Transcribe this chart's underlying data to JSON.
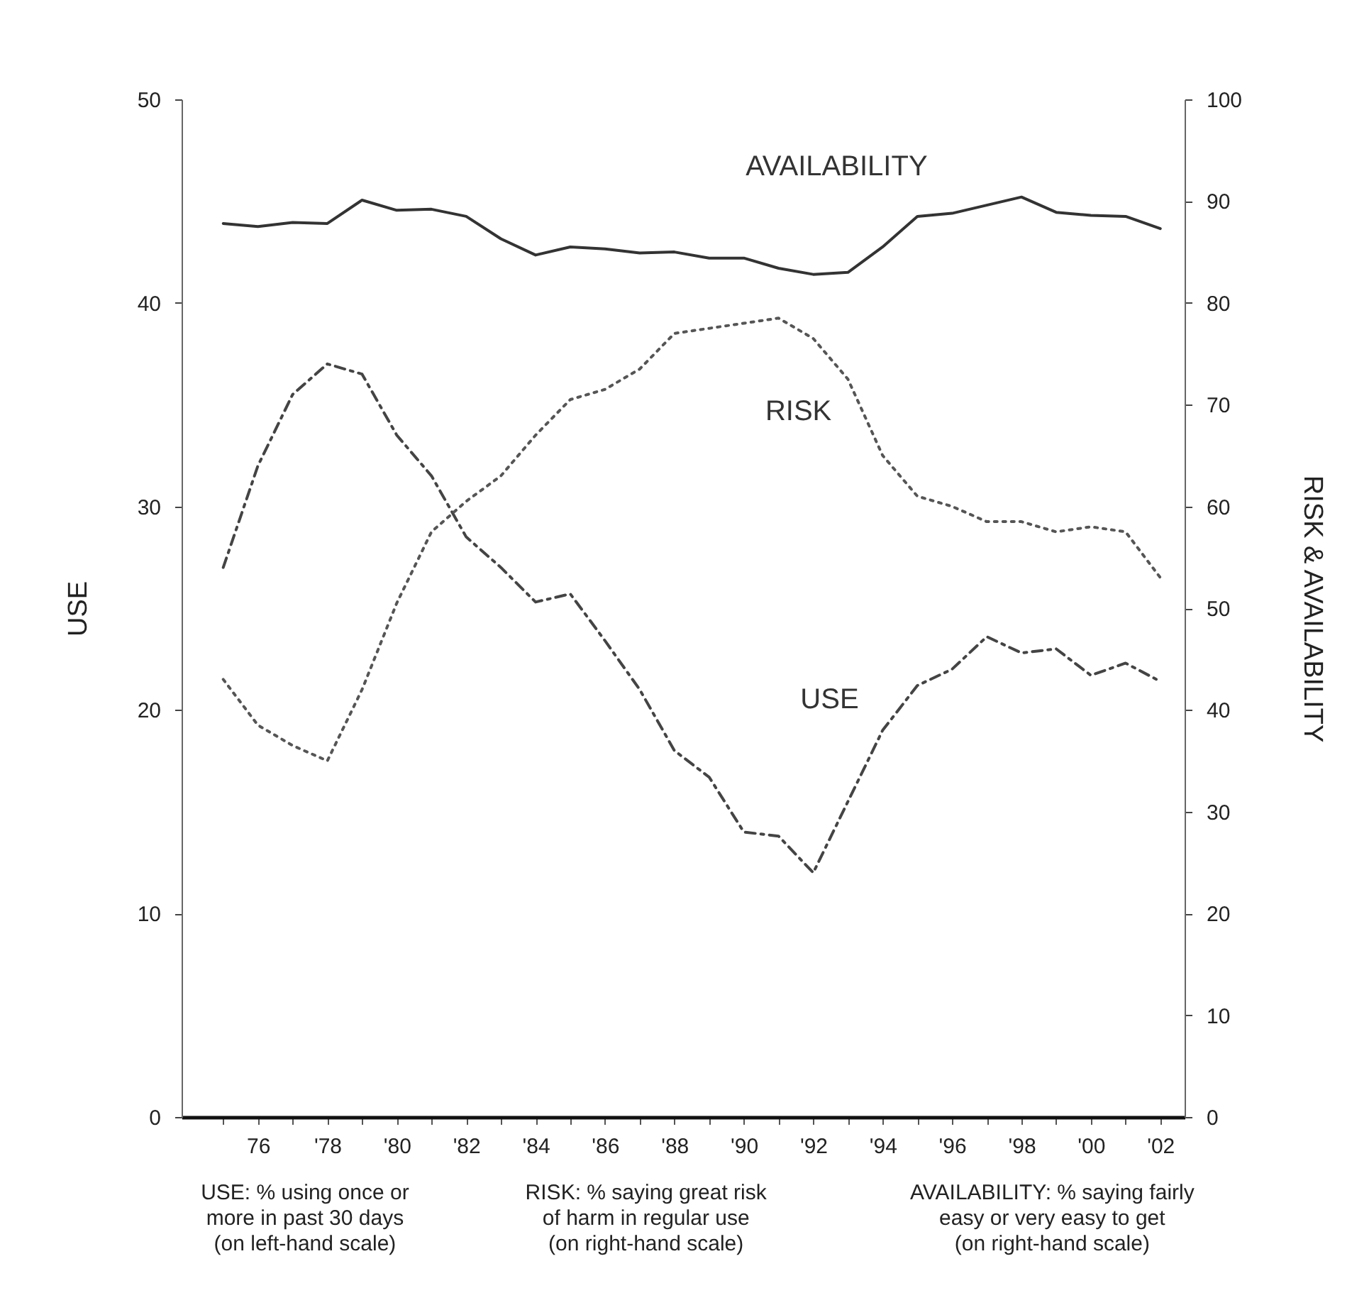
{
  "chart_data": {
    "type": "line",
    "ylabel": "USE",
    "y2label": "RISK & AVAILABILITY",
    "x": [
      1975,
      1976,
      1977,
      1978,
      1979,
      1980,
      1981,
      1982,
      1983,
      1984,
      1985,
      1986,
      1987,
      1988,
      1989,
      1990,
      1991,
      1992,
      1993,
      1994,
      1995,
      1996,
      1997,
      1998,
      1999,
      2000,
      2001,
      2002
    ],
    "series": [
      {
        "name": "USE",
        "color": "#444444",
        "line_style": "dashed",
        "values": [
          27,
          32,
          35.5,
          37,
          36.5,
          33.5,
          31.5,
          28.5,
          27,
          25.3,
          25.7,
          23.4,
          21,
          18,
          16.7,
          14,
          13.8,
          12,
          15.5,
          19,
          21.2,
          22,
          23.6,
          22.8,
          23,
          21.7,
          22.3,
          21.4
        ]
      },
      {
        "name": "RISK",
        "color": "#555555",
        "line_style": "dotted",
        "axis": "y2",
        "values": [
          43,
          38.5,
          36.5,
          35,
          42,
          50.5,
          57.5,
          60.5,
          63,
          67,
          70.5,
          71.5,
          73.5,
          77,
          77.5,
          78,
          78.5,
          76.5,
          72.5,
          65,
          61,
          60,
          58.5,
          58.5,
          57.5,
          58,
          57.5,
          53
        ]
      },
      {
        "name": "AVAILABILITY",
        "color": "#333333",
        "line_style": "solid",
        "axis": "y2",
        "values": [
          87.8,
          87.5,
          87.9,
          87.8,
          90.1,
          89.1,
          89.2,
          88.5,
          86.3,
          84.7,
          85.5,
          85.3,
          84.9,
          85,
          84.4,
          84.4,
          83.4,
          82.8,
          83,
          85.5,
          88.5,
          88.8,
          89.6,
          90.4,
          88.9,
          88.6,
          88.5,
          87.3
        ]
      }
    ],
    "xlim": [
      1973.8,
      2002.7
    ],
    "xticks": [
      {
        "value": 1975,
        "label": null
      },
      {
        "value": 1976,
        "label": "76"
      },
      {
        "value": 1977,
        "label": null
      },
      {
        "value": 1978,
        "label": "'78"
      },
      {
        "value": 1979,
        "label": null
      },
      {
        "value": 1980,
        "label": "'80"
      },
      {
        "value": 1981,
        "label": null
      },
      {
        "value": 1982,
        "label": "'82"
      },
      {
        "value": 1983,
        "label": null
      },
      {
        "value": 1984,
        "label": "'84"
      },
      {
        "value": 1985,
        "label": null
      },
      {
        "value": 1986,
        "label": "'86"
      },
      {
        "value": 1987,
        "label": null
      },
      {
        "value": 1988,
        "label": "'88"
      },
      {
        "value": 1989,
        "label": null
      },
      {
        "value": 1990,
        "label": "'90"
      },
      {
        "value": 1991,
        "label": null
      },
      {
        "value": 1992,
        "label": "'92"
      },
      {
        "value": 1993,
        "label": null
      },
      {
        "value": 1994,
        "label": "'94"
      },
      {
        "value": 1995,
        "label": null
      },
      {
        "value": 1996,
        "label": "'96"
      },
      {
        "value": 1997,
        "label": null
      },
      {
        "value": 1998,
        "label": "'98"
      },
      {
        "value": 1999,
        "label": null
      },
      {
        "value": 2000,
        "label": "'00"
      },
      {
        "value": 2001,
        "label": null
      },
      {
        "value": 2002,
        "label": "'02"
      }
    ],
    "ylim": [
      0,
      50
    ],
    "yticks": [
      0,
      10,
      20,
      30,
      40,
      50
    ],
    "y2lim": [
      0,
      100
    ],
    "y2ticks": [
      0,
      10,
      20,
      30,
      40,
      50,
      60,
      70,
      80,
      90,
      100
    ],
    "grid": false,
    "marker": "none",
    "annotations": [
      "USE:  % using once or\nmore in past 30 days\n(on left-hand scale)",
      "RISK:  % saying great risk\nof harm in regular use\n(on right-hand scale)",
      "AVAILABILITY:  % saying fairly\neasy or very easy to get\n(on right-hand scale)"
    ]
  }
}
